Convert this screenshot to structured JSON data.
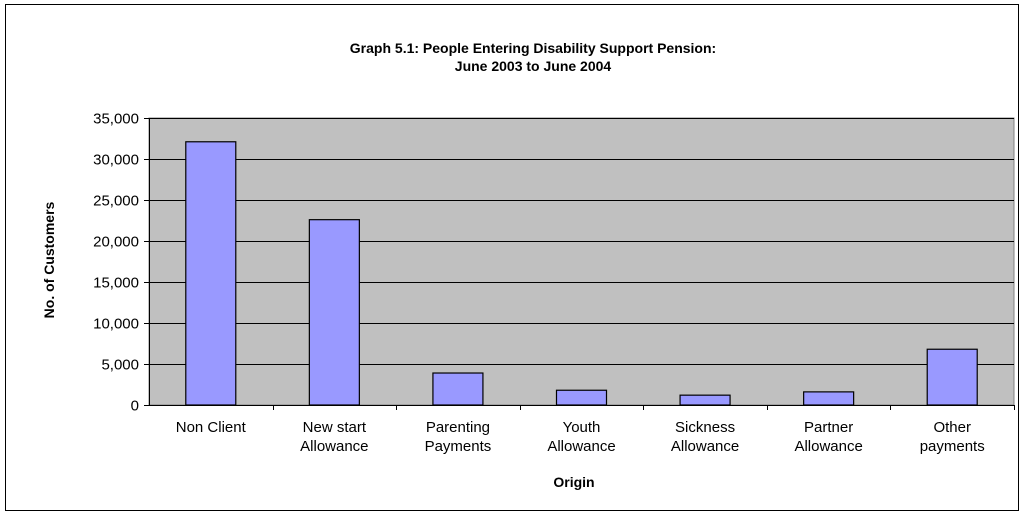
{
  "chart_data": {
    "type": "bar",
    "title": [
      "Graph 5.1: People Entering Disability Support Pension:",
      "June 2003 to June 2004"
    ],
    "xlabel": "Origin",
    "ylabel": "No. of Customers",
    "ylim": [
      0,
      35000
    ],
    "yticks": [
      0,
      5000,
      10000,
      15000,
      20000,
      25000,
      30000,
      35000
    ],
    "ytick_labels": [
      "0",
      "5,000",
      "10,000",
      "15,000",
      "20,000",
      "25,000",
      "30,000",
      "35,000"
    ],
    "categories": [
      [
        "Non Client"
      ],
      [
        "New start",
        "Allowance"
      ],
      [
        "Parenting",
        "Payments"
      ],
      [
        "Youth",
        "Allowance"
      ],
      [
        "Sickness",
        "Allowance"
      ],
      [
        "Partner",
        "Allowance"
      ],
      [
        "Other",
        "payments"
      ]
    ],
    "values": [
      32100,
      22600,
      3900,
      1800,
      1200,
      1600,
      6800
    ],
    "grid": true,
    "legend": "none"
  },
  "colors": {
    "plot_bg": "#c0c0c0",
    "bar_fill": "#9999ff",
    "bar_stroke": "#000000",
    "gridline": "#000000"
  }
}
